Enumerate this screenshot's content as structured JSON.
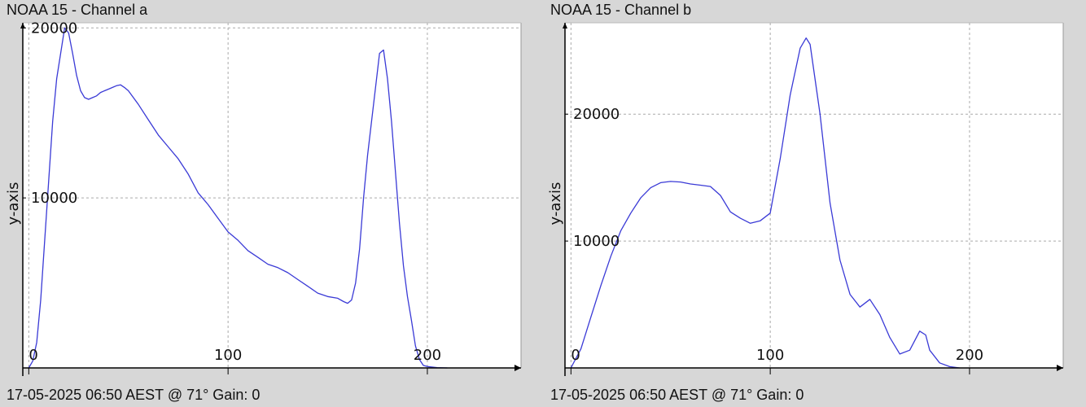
{
  "chart_data": [
    {
      "type": "line",
      "title": "NOAA 15 - Channel a",
      "footer": "17-05-2025 06:50 AEST @ 71° Gain: 0",
      "ylabel": "y-axis",
      "xlabel": "",
      "xlim": [
        -3,
        247
      ],
      "ylim": [
        0,
        20300
      ],
      "xticks": [
        0,
        100,
        200
      ],
      "yticks": [
        10000,
        20000
      ],
      "line_color": "#3a3ad6",
      "grid": true,
      "series": [
        {
          "x": [
            0,
            2,
            4,
            6,
            8,
            10,
            12,
            14,
            16,
            18,
            20,
            22,
            24,
            26,
            28,
            30,
            32,
            34,
            36,
            38,
            40,
            42,
            44,
            46,
            48,
            50,
            55,
            60,
            65,
            70,
            75,
            80,
            85,
            90,
            95,
            100,
            105,
            110,
            115,
            120,
            125,
            130,
            135,
            140,
            145,
            150,
            155,
            158,
            160,
            162,
            164,
            166,
            168,
            170,
            172,
            174,
            176,
            178,
            180,
            182,
            184,
            186,
            188,
            190,
            192,
            194,
            196,
            198,
            200,
            205,
            210
          ],
          "y": [
            0,
            400,
            1500,
            4000,
            7500,
            11000,
            14500,
            17000,
            18500,
            20000,
            19700,
            18500,
            17200,
            16300,
            15900,
            15800,
            15900,
            16000,
            16200,
            16300,
            16400,
            16500,
            16600,
            16650,
            16500,
            16300,
            15500,
            14600,
            13700,
            13000,
            12300,
            11400,
            10300,
            9600,
            8800,
            8000,
            7500,
            6900,
            6500,
            6100,
            5900,
            5600,
            5200,
            4800,
            4400,
            4200,
            4100,
            3900,
            3800,
            4000,
            5000,
            7000,
            10000,
            12500,
            14500,
            16500,
            18500,
            18700,
            17000,
            14500,
            11500,
            8500,
            6000,
            4200,
            2800,
            1300,
            500,
            150,
            80,
            20,
            0
          ]
        }
      ]
    },
    {
      "type": "line",
      "title": "NOAA 15 - Channel b",
      "footer": "17-05-2025 06:50 AEST @ 71° Gain: 0",
      "ylabel": "y-axis",
      "xlabel": "",
      "xlim": [
        -3,
        247
      ],
      "ylim": [
        0,
        27200
      ],
      "xticks": [
        0,
        100,
        200
      ],
      "yticks": [
        10000,
        20000
      ],
      "line_color": "#3a3ad6",
      "grid": true,
      "series": [
        {
          "x": [
            0,
            5,
            10,
            15,
            20,
            25,
            30,
            35,
            40,
            45,
            50,
            55,
            60,
            65,
            70,
            75,
            80,
            85,
            90,
            95,
            100,
            105,
            110,
            115,
            118,
            120,
            125,
            130,
            135,
            140,
            145,
            150,
            155,
            160,
            165,
            170,
            175,
            178,
            180,
            185,
            190,
            195
          ],
          "y": [
            0,
            1500,
            4000,
            6500,
            8800,
            10800,
            12200,
            13400,
            14200,
            14600,
            14700,
            14650,
            14500,
            14400,
            14300,
            13600,
            12300,
            11800,
            11400,
            11600,
            12200,
            16500,
            21500,
            25200,
            26000,
            25500,
            20000,
            13000,
            8500,
            5800,
            4800,
            5400,
            4200,
            2400,
            1100,
            1400,
            2900,
            2600,
            1400,
            400,
            100,
            0
          ]
        }
      ]
    }
  ]
}
